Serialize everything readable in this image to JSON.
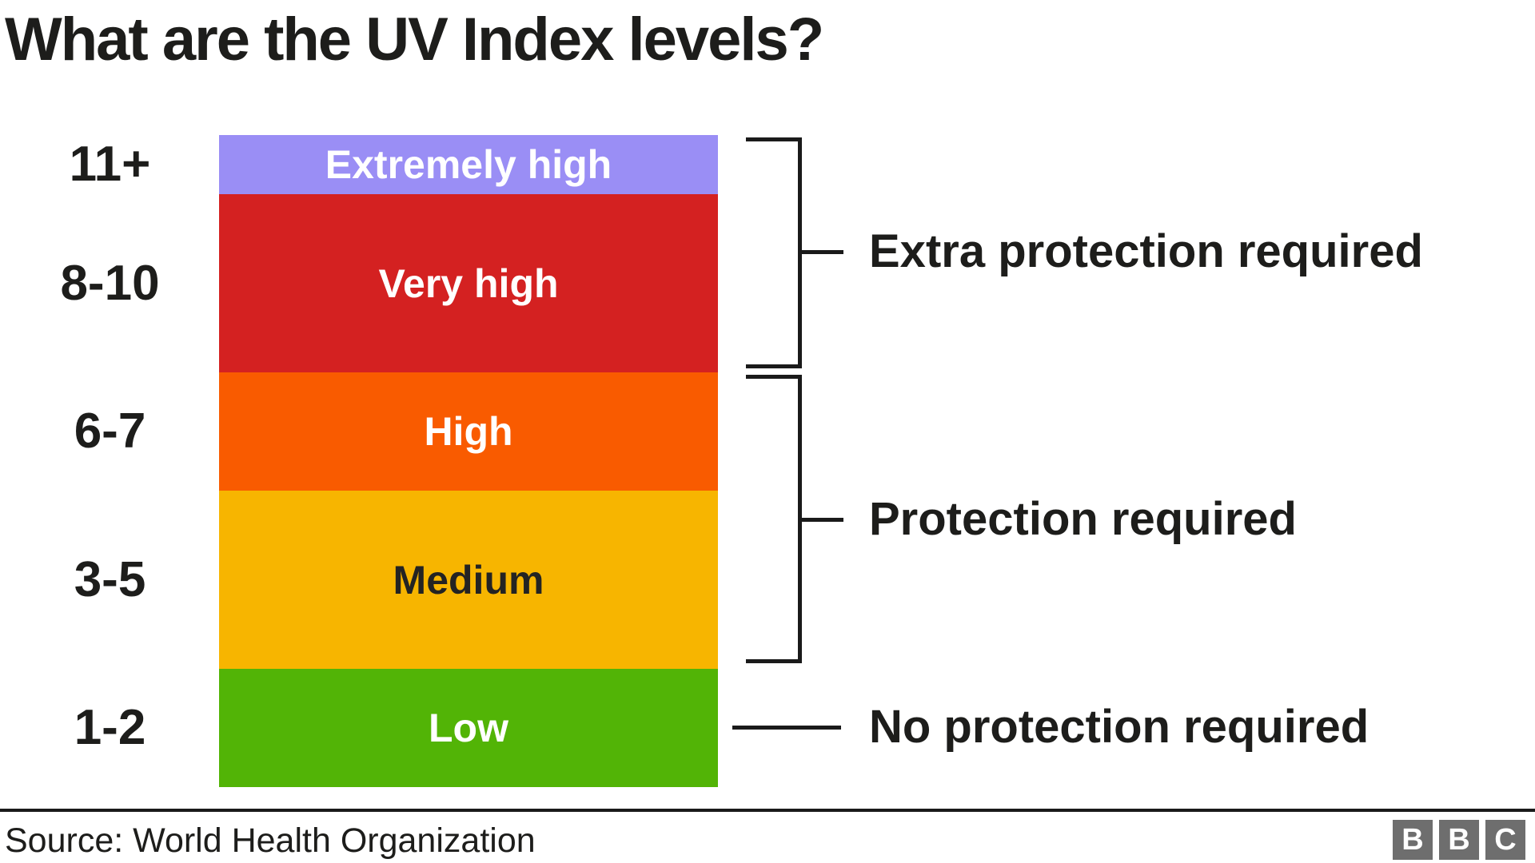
{
  "title": "What are the UV Index levels?",
  "chart_data": {
    "type": "bar",
    "title": "What are the UV Index levels?",
    "orientation": "vertical-stacked-category-scale",
    "categories": [
      "11+",
      "8-10",
      "6-7",
      "3-5",
      "1-2"
    ],
    "values": [
      1,
      3,
      2,
      3,
      2
    ],
    "values_note": "relative band heights = number of UV index units covered",
    "bands": [
      {
        "range": "11+",
        "label": "Extremely high",
        "color": "#9a8ef5",
        "text_color": "#ffffff",
        "protection": "Extra protection required"
      },
      {
        "range": "8-10",
        "label": "Very high",
        "color": "#d42121",
        "text_color": "#ffffff",
        "protection": "Extra protection required"
      },
      {
        "range": "6-7",
        "label": "High",
        "color": "#f95b00",
        "text_color": "#ffffff",
        "protection": "Protection required"
      },
      {
        "range": "3-5",
        "label": "Medium",
        "color": "#f7b500",
        "text_color": "#232323",
        "protection": "Protection required"
      },
      {
        "range": "1-2",
        "label": "Low",
        "color": "#52b406",
        "text_color": "#ffffff",
        "protection": "No protection required"
      }
    ],
    "legend_position": "right",
    "grid": false
  },
  "annotations": {
    "extra_protection": "Extra protection required",
    "protection": "Protection required",
    "no_protection": "No protection required"
  },
  "footer": {
    "source": "Source: World Health Organization",
    "logo_letters": [
      "B",
      "B",
      "C"
    ]
  },
  "colors": {
    "text": "#1d1d1b",
    "bracket": "#1a1a1a",
    "logo_grey": "#6e6e6e",
    "background": "#ffffff"
  }
}
